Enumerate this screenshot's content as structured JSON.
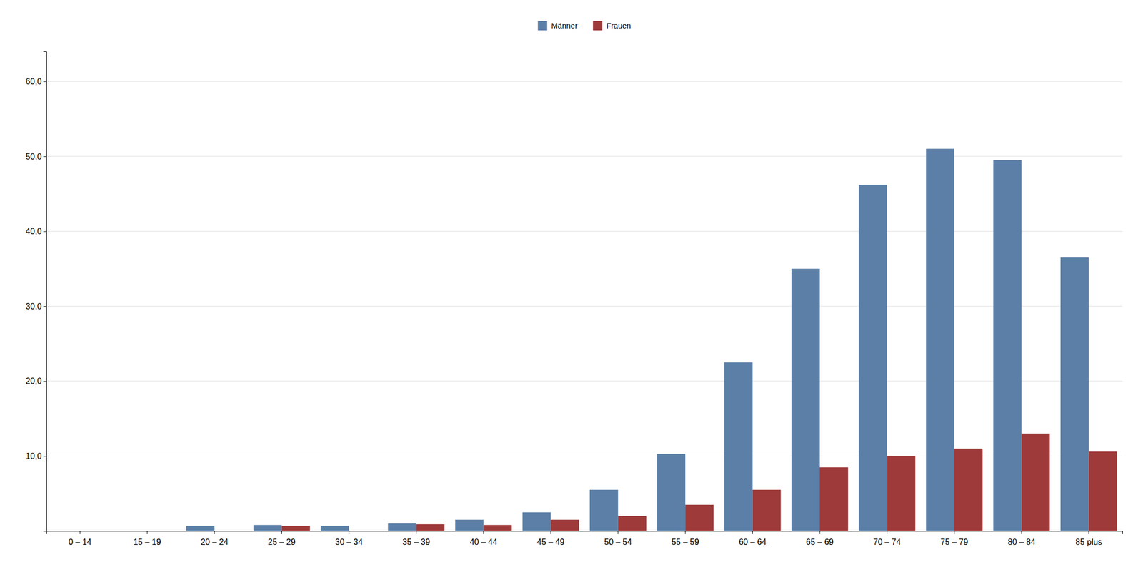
{
  "chart_data": {
    "type": "bar",
    "categories": [
      "0 – 14",
      "15 – 19",
      "20 – 24",
      "25 – 29",
      "30 – 34",
      "35 – 39",
      "40 – 44",
      "45 – 49",
      "50 – 54",
      "55 – 59",
      "60 – 64",
      "65 – 69",
      "70 – 74",
      "75 – 79",
      "80 – 84",
      "85 plus"
    ],
    "series": [
      {
        "name": "Männer",
        "color": "#5b7fa6",
        "values": [
          0.0,
          0.0,
          0.7,
          0.8,
          0.7,
          1.0,
          1.5,
          2.5,
          5.5,
          10.3,
          22.5,
          35.0,
          46.2,
          51.0,
          49.5,
          36.5
        ]
      },
      {
        "name": "Frauen",
        "color": "#9e3a3a",
        "values": [
          0.0,
          0.0,
          0.0,
          0.7,
          0.0,
          0.9,
          0.8,
          1.5,
          2.0,
          3.5,
          5.5,
          8.5,
          10.0,
          11.0,
          13.0,
          10.6
        ]
      }
    ],
    "ylim": [
      0,
      64
    ],
    "yticks": [
      {
        "value": 10.0,
        "label": "10,0"
      },
      {
        "value": 20.0,
        "label": "20,0"
      },
      {
        "value": 30.0,
        "label": "30,0"
      },
      {
        "value": 40.0,
        "label": "40,0"
      },
      {
        "value": 50.0,
        "label": "50,0"
      },
      {
        "value": 60.0,
        "label": "60,0"
      }
    ],
    "grid": true,
    "legend": "top"
  }
}
